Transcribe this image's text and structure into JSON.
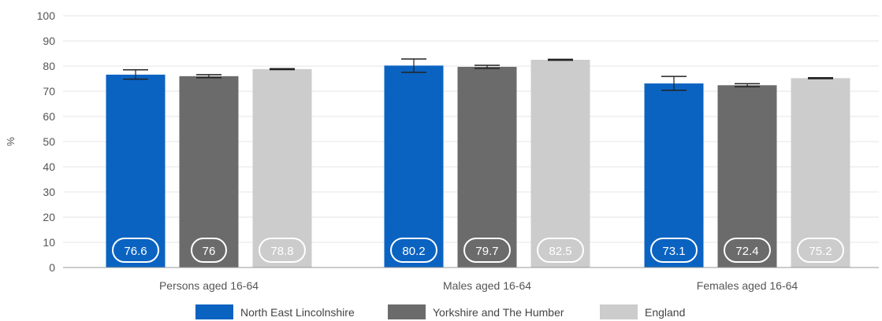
{
  "chart_data": {
    "type": "bar",
    "title": "",
    "xlabel": "",
    "ylabel": "%",
    "ylim": [
      0,
      100
    ],
    "yticks": [
      0,
      10,
      20,
      30,
      40,
      50,
      60,
      70,
      80,
      90,
      100
    ],
    "grid": true,
    "legend_position": "bottom",
    "categories": [
      "Persons aged 16-64",
      "Males aged 16-64",
      "Females aged 16-64"
    ],
    "series": [
      {
        "name": "North East Lincolnshire",
        "color": "#0b63c1",
        "values": [
          76.6,
          80.2,
          73.1
        ],
        "labels": [
          "76.6",
          "80.2",
          "73.1"
        ],
        "error_low": [
          74.8,
          77.5,
          70.4
        ],
        "error_high": [
          78.5,
          82.8,
          75.9
        ]
      },
      {
        "name": "Yorkshire and The Humber",
        "color": "#6b6b6b",
        "values": [
          76.0,
          79.7,
          72.4
        ],
        "labels": [
          "76",
          "79.7",
          "72.4"
        ],
        "error_low": [
          75.4,
          79.1,
          71.8
        ],
        "error_high": [
          76.6,
          80.3,
          73.0
        ]
      },
      {
        "name": "England",
        "color": "#cccccc",
        "values": [
          78.8,
          82.5,
          75.2
        ],
        "labels": [
          "78.8",
          "82.5",
          "75.2"
        ],
        "error_low": [
          78.6,
          82.3,
          75.0
        ],
        "error_high": [
          79.0,
          82.7,
          75.4
        ]
      }
    ]
  }
}
